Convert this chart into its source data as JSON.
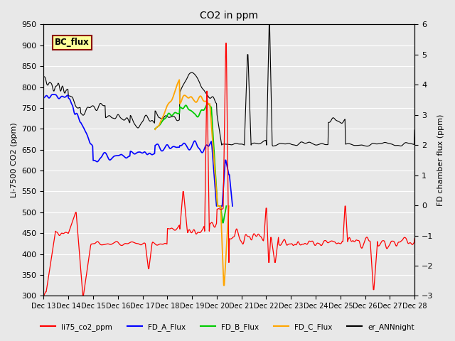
{
  "title": "CO2 in ppm",
  "ylabel_left": "Li-7500 CO2 (ppm)",
  "ylabel_right": "FD chamber flux (ppm)",
  "ylim_left": [
    300,
    950
  ],
  "ylim_right": [
    -3.0,
    6.0
  ],
  "yticks_left": [
    300,
    350,
    400,
    450,
    500,
    550,
    600,
    650,
    700,
    750,
    800,
    850,
    900,
    950
  ],
  "yticks_right": [
    -3.0,
    -2.0,
    -1.0,
    0.0,
    1.0,
    2.0,
    3.0,
    4.0,
    5.0,
    6.0
  ],
  "legend_box_label": "BC_flux",
  "legend_box_facecolor": "#FFFF99",
  "legend_box_edgecolor": "#8B0000",
  "colors": {
    "li75": "#FF0000",
    "FD_A": "#0000FF",
    "FD_B": "#00CC00",
    "FD_C": "#FFA500",
    "er_ANN": "#000000"
  },
  "legend_labels": [
    "li75_co2_ppm",
    "FD_A_Flux",
    "FD_B_Flux",
    "FD_C_Flux",
    "er_ANNnight"
  ],
  "xticklabels": [
    "Dec 13",
    "Dec 14",
    "Dec 15",
    "Dec 16",
    "Dec 17",
    "Dec 18",
    "Dec 19",
    "Dec 20",
    "Dec 21",
    "Dec 22",
    "Dec 23",
    "Dec 24",
    "Dec 25",
    "Dec 26",
    "Dec 27",
    "Dec 28"
  ],
  "background_color": "#E8E8E8",
  "grid_color": "#FFFFFF",
  "title_fontsize": 10,
  "axis_fontsize": 8,
  "tick_fontsize": 8
}
